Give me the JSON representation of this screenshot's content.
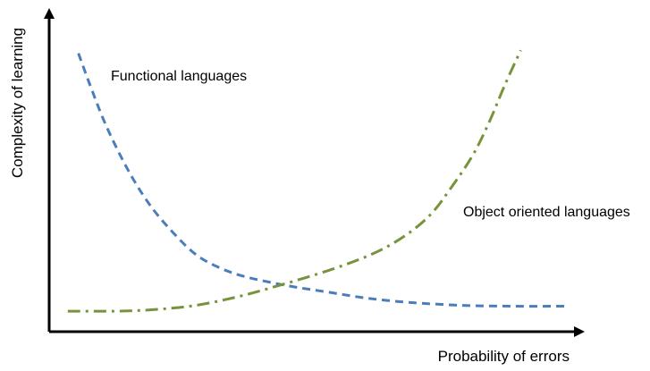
{
  "chart_data": {
    "type": "line",
    "title": "",
    "xlabel": "Probability of errors",
    "ylabel": "Complexity of learning",
    "xlim": [
      0,
      100
    ],
    "ylim": [
      0,
      100
    ],
    "grid": false,
    "legend": "none",
    "axis_color": "#000000",
    "series": [
      {
        "name": "Functional languages",
        "color": "#4a7ebb",
        "dash": "dashed",
        "x": [
          8,
          10,
          13,
          17,
          21,
          25,
          30,
          35,
          40,
          48,
          55,
          62,
          70,
          80,
          90,
          100
        ],
        "y": [
          94,
          84,
          70,
          55,
          43,
          34,
          25,
          20,
          17,
          14,
          12,
          10,
          8.5,
          7.5,
          7.2,
          7.2
        ]
      },
      {
        "name": "Object oriented languages",
        "color": "#77933c",
        "dash": "dashdot",
        "x": [
          6,
          15,
          22,
          30,
          38,
          46,
          55,
          63,
          69,
          74,
          78,
          82,
          85,
          88,
          91
        ],
        "y": [
          5.5,
          5.5,
          6,
          7.5,
          10.5,
          14.5,
          19.5,
          25,
          31,
          38.5,
          48,
          59,
          70,
          83,
          95
        ]
      }
    ]
  }
}
